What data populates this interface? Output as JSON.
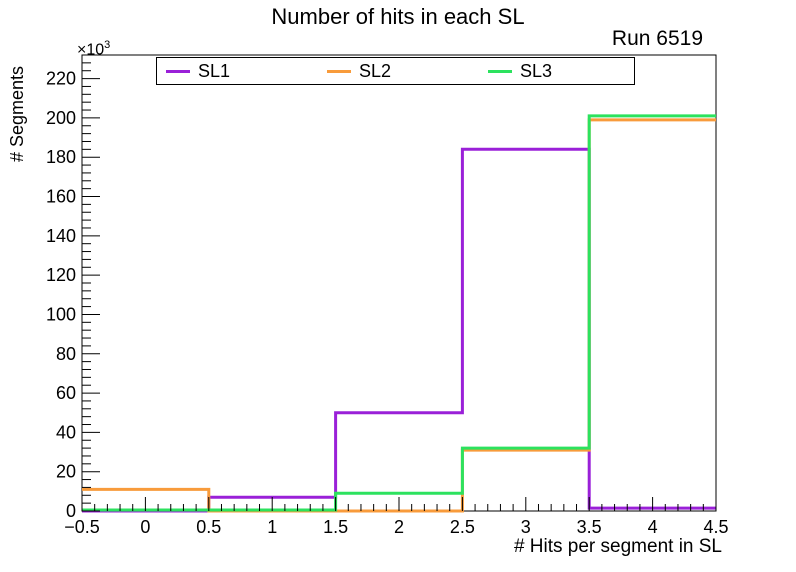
{
  "window": {
    "background": "#ffffff"
  },
  "title": "Number of hits in each SL",
  "run_label": "Run 6519",
  "axes": {
    "x_title": "# Hits per segment in SL",
    "y_title": "# Segments",
    "y_exp_base": "×10",
    "y_exp_sup": "3",
    "x_tick_labels": [
      "−0.5",
      "0",
      "0.5",
      "1",
      "1.5",
      "2",
      "2.5",
      "3",
      "3.5",
      "4",
      "4.5"
    ],
    "x_tick_values": [
      -0.5,
      0,
      0.5,
      1,
      1.5,
      2,
      2.5,
      3,
      3.5,
      4,
      4.5
    ],
    "y_tick_labels": [
      "0",
      "20",
      "40",
      "60",
      "80",
      "100",
      "120",
      "140",
      "160",
      "180",
      "200",
      "220"
    ],
    "y_tick_values": [
      0,
      20000,
      40000,
      60000,
      80000,
      100000,
      120000,
      140000,
      160000,
      180000,
      200000,
      220000
    ]
  },
  "legend": {
    "entries": [
      {
        "label": "SL1",
        "color": "#9a20d8"
      },
      {
        "label": "SL2",
        "color": "#f89b3b"
      },
      {
        "label": "SL3",
        "color": "#2ce25e"
      }
    ]
  },
  "chart_data": {
    "type": "line",
    "style": "step-histogram",
    "title": "Number of hits in each SL",
    "annotation": "Run 6519",
    "xlabel": "# Hits per segment in SL",
    "ylabel": "# Segments (×10³)",
    "bin_edges": [
      -0.5,
      0.5,
      1.5,
      2.5,
      3.5,
      4.5
    ],
    "xlim": [
      -0.5,
      4.5
    ],
    "ylim": [
      0,
      232000
    ],
    "grid": false,
    "legend_position": "top",
    "series": [
      {
        "name": "SL1",
        "color": "#9a20d8",
        "values": [
          0,
          7000,
          50000,
          184000,
          1500
        ]
      },
      {
        "name": "SL2",
        "color": "#f89b3b",
        "values": [
          11000,
          0,
          0,
          31000,
          199000
        ]
      },
      {
        "name": "SL3",
        "color": "#2ce25e",
        "values": [
          500,
          500,
          9000,
          32000,
          201000
        ]
      }
    ]
  }
}
